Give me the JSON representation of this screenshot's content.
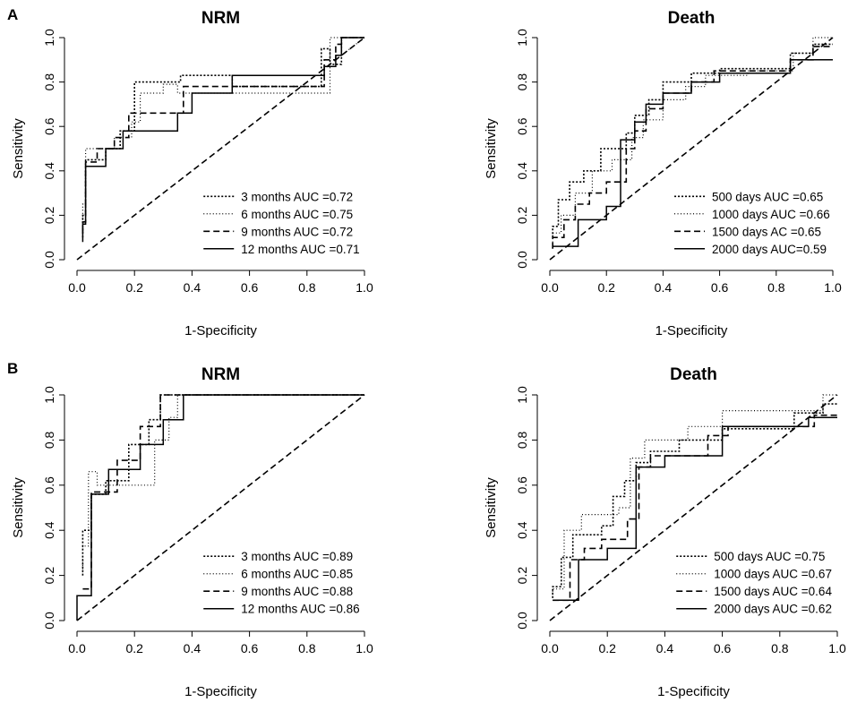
{
  "figure": {
    "panels": [
      {
        "letter": "A"
      },
      {
        "letter": "B"
      }
    ]
  },
  "chart_data": [
    {
      "panel": "A",
      "type": "line",
      "title": "NRM",
      "xlabel": "1-Specificity",
      "ylabel": "Sensitivity",
      "xlim": [
        0,
        1
      ],
      "ylim": [
        0,
        1
      ],
      "xticks": [
        "0.0",
        "0.2",
        "0.4",
        "0.6",
        "0.8",
        "1.0"
      ],
      "yticks": [
        "0.0",
        "0.2",
        "0.4",
        "0.6",
        "0.8",
        "1.0"
      ],
      "legend_position": "bottom-right",
      "reference_line": "diagonal",
      "series": [
        {
          "name": "3 months AUC =0.72",
          "style": "dotted-dense",
          "x": [
            0.02,
            0.02,
            0.03,
            0.03,
            0.1,
            0.1,
            0.15,
            0.15,
            0.2,
            0.2,
            0.36,
            0.36,
            0.54,
            0.54,
            0.85,
            0.85,
            0.88,
            0.88,
            0.92,
            0.92,
            1.0
          ],
          "y": [
            0.1,
            0.2,
            0.2,
            0.45,
            0.45,
            0.5,
            0.5,
            0.58,
            0.58,
            0.8,
            0.8,
            0.83,
            0.83,
            0.78,
            0.78,
            0.95,
            0.95,
            0.88,
            0.88,
            1.0,
            1.0
          ]
        },
        {
          "name": "6 months AUC =0.75",
          "style": "dotted-sparse",
          "x": [
            0.02,
            0.02,
            0.03,
            0.03,
            0.13,
            0.13,
            0.19,
            0.19,
            0.22,
            0.22,
            0.3,
            0.3,
            0.35,
            0.35,
            0.88,
            0.88,
            0.92,
            0.92,
            1.0
          ],
          "y": [
            0.15,
            0.25,
            0.25,
            0.5,
            0.5,
            0.55,
            0.55,
            0.62,
            0.62,
            0.75,
            0.75,
            0.79,
            0.79,
            0.75,
            0.75,
            1.0,
            1.0,
            0.92,
            1.0
          ]
        },
        {
          "name": "9 months AUC =0.72",
          "style": "dashed",
          "x": [
            0.02,
            0.02,
            0.03,
            0.03,
            0.07,
            0.07,
            0.13,
            0.13,
            0.18,
            0.18,
            0.25,
            0.25,
            0.37,
            0.37,
            0.86,
            0.86,
            0.9,
            0.9,
            0.92,
            0.92,
            1.0
          ],
          "y": [
            0.12,
            0.17,
            0.17,
            0.44,
            0.44,
            0.5,
            0.5,
            0.55,
            0.55,
            0.66,
            0.66,
            0.66,
            0.66,
            0.78,
            0.78,
            0.9,
            0.9,
            0.97,
            0.97,
            1.0,
            1.0
          ]
        },
        {
          "name": "12 months AUC =0.71",
          "style": "solid",
          "x": [
            0.02,
            0.02,
            0.03,
            0.03,
            0.1,
            0.1,
            0.16,
            0.16,
            0.2,
            0.2,
            0.35,
            0.35,
            0.4,
            0.4,
            0.54,
            0.54,
            0.86,
            0.86,
            0.9,
            0.9,
            0.92,
            0.92,
            1.0
          ],
          "y": [
            0.08,
            0.16,
            0.16,
            0.42,
            0.42,
            0.5,
            0.5,
            0.58,
            0.58,
            0.58,
            0.58,
            0.66,
            0.66,
            0.75,
            0.75,
            0.83,
            0.83,
            0.87,
            0.87,
            0.92,
            0.92,
            1.0,
            1.0
          ]
        }
      ]
    },
    {
      "panel": "A",
      "type": "line",
      "title": "Death",
      "xlabel": "1-Specificity",
      "ylabel": "Sensitivity",
      "xlim": [
        0,
        1
      ],
      "ylim": [
        0,
        1
      ],
      "xticks": [
        "0.0",
        "0.2",
        "0.4",
        "0.6",
        "0.8",
        "1.0"
      ],
      "yticks": [
        "0.0",
        "0.2",
        "0.4",
        "0.6",
        "0.8",
        "1.0"
      ],
      "legend_position": "bottom-right",
      "reference_line": "diagonal",
      "series": [
        {
          "name": "500 days AUC =0.65",
          "style": "dotted-dense",
          "x": [
            0.01,
            0.01,
            0.03,
            0.03,
            0.07,
            0.07,
            0.12,
            0.12,
            0.18,
            0.18,
            0.27,
            0.27,
            0.3,
            0.3,
            0.35,
            0.35,
            0.4,
            0.4,
            0.5,
            0.5,
            0.6,
            0.6,
            0.85,
            0.85,
            0.93,
            0.93,
            1.0
          ],
          "y": [
            0.1,
            0.15,
            0.15,
            0.27,
            0.27,
            0.35,
            0.35,
            0.4,
            0.4,
            0.5,
            0.5,
            0.57,
            0.57,
            0.65,
            0.65,
            0.72,
            0.72,
            0.8,
            0.8,
            0.84,
            0.84,
            0.86,
            0.86,
            0.93,
            0.93,
            0.97,
            0.97
          ]
        },
        {
          "name": "1000 days AUC =0.66",
          "style": "dotted-sparse",
          "x": [
            0.01,
            0.01,
            0.04,
            0.04,
            0.09,
            0.09,
            0.15,
            0.15,
            0.22,
            0.22,
            0.29,
            0.29,
            0.33,
            0.33,
            0.4,
            0.4,
            0.48,
            0.48,
            0.55,
            0.55,
            0.7,
            0.7,
            0.86,
            0.86,
            0.93,
            0.93,
            1.0
          ],
          "y": [
            0.05,
            0.12,
            0.12,
            0.2,
            0.2,
            0.3,
            0.3,
            0.4,
            0.4,
            0.45,
            0.45,
            0.55,
            0.55,
            0.63,
            0.63,
            0.72,
            0.72,
            0.78,
            0.78,
            0.83,
            0.83,
            0.85,
            0.85,
            0.93,
            0.93,
            1.0,
            1.0
          ]
        },
        {
          "name": "1500 days AC =0.65",
          "style": "dashed",
          "x": [
            0.01,
            0.01,
            0.05,
            0.05,
            0.09,
            0.09,
            0.14,
            0.14,
            0.2,
            0.2,
            0.27,
            0.27,
            0.3,
            0.3,
            0.34,
            0.34,
            0.4,
            0.4,
            0.5,
            0.5,
            0.58,
            0.58,
            0.85,
            0.85,
            0.93,
            0.93,
            1.0
          ],
          "y": [
            0.05,
            0.1,
            0.1,
            0.18,
            0.18,
            0.25,
            0.25,
            0.3,
            0.3,
            0.35,
            0.35,
            0.5,
            0.5,
            0.58,
            0.58,
            0.68,
            0.68,
            0.75,
            0.75,
            0.8,
            0.8,
            0.85,
            0.85,
            0.9,
            0.9,
            0.96,
            0.96
          ]
        },
        {
          "name": "2000 days AUC=0.59",
          "style": "solid",
          "x": [
            0.01,
            0.01,
            0.1,
            0.1,
            0.2,
            0.2,
            0.25,
            0.25,
            0.3,
            0.3,
            0.34,
            0.34,
            0.4,
            0.4,
            0.5,
            0.5,
            0.6,
            0.6,
            0.85,
            0.85,
            0.9,
            0.9,
            1.0
          ],
          "y": [
            0.05,
            0.06,
            0.06,
            0.18,
            0.18,
            0.24,
            0.24,
            0.54,
            0.54,
            0.62,
            0.62,
            0.7,
            0.7,
            0.75,
            0.75,
            0.8,
            0.8,
            0.84,
            0.84,
            0.9,
            0.9,
            0.9,
            0.9
          ]
        }
      ]
    },
    {
      "panel": "B",
      "type": "line",
      "title": "NRM",
      "xlabel": "1-Specificity",
      "ylabel": "Sensitivity",
      "xlim": [
        0,
        1
      ],
      "ylim": [
        0,
        1
      ],
      "xticks": [
        "0.0",
        "0.2",
        "0.4",
        "0.6",
        "0.8",
        "1.0"
      ],
      "yticks": [
        "0.0",
        "0.2",
        "0.4",
        "0.6",
        "0.8",
        "1.0"
      ],
      "legend_position": "bottom-right",
      "reference_line": "diagonal",
      "series": [
        {
          "name": "3 months AUC =0.89",
          "style": "dotted-dense",
          "x": [
            0.02,
            0.02,
            0.05,
            0.05,
            0.1,
            0.1,
            0.18,
            0.18,
            0.25,
            0.25,
            0.29,
            0.29,
            0.31,
            0.31,
            1.0
          ],
          "y": [
            0.2,
            0.4,
            0.4,
            0.56,
            0.56,
            0.62,
            0.62,
            0.78,
            0.78,
            0.89,
            0.89,
            1.0,
            1.0,
            1.0,
            1.0
          ]
        },
        {
          "name": "6 months AUC =0.85",
          "style": "dotted-sparse",
          "x": [
            0.02,
            0.02,
            0.04,
            0.04,
            0.07,
            0.07,
            0.12,
            0.12,
            0.27,
            0.27,
            0.32,
            0.32,
            0.35,
            0.35,
            1.0
          ],
          "y": [
            0.2,
            0.33,
            0.33,
            0.66,
            0.66,
            0.6,
            0.6,
            0.6,
            0.6,
            0.8,
            0.8,
            0.9,
            0.9,
            1.0,
            1.0
          ]
        },
        {
          "name": "9 months AUC =0.88",
          "style": "dashed",
          "x": [
            0.02,
            0.02,
            0.05,
            0.05,
            0.08,
            0.08,
            0.14,
            0.14,
            0.22,
            0.22,
            0.29,
            0.29,
            0.3,
            0.3,
            1.0
          ],
          "y": [
            0.14,
            0.14,
            0.14,
            0.57,
            0.57,
            0.57,
            0.57,
            0.71,
            0.71,
            0.86,
            0.86,
            1.0,
            1.0,
            1.0,
            1.0
          ]
        },
        {
          "name": "12 months AUC =0.86",
          "style": "solid",
          "x": [
            0.0,
            0.0,
            0.05,
            0.05,
            0.11,
            0.11,
            0.22,
            0.22,
            0.27,
            0.27,
            0.3,
            0.3,
            0.33,
            0.33,
            0.37,
            0.37,
            1.0
          ],
          "y": [
            0.0,
            0.11,
            0.11,
            0.56,
            0.56,
            0.67,
            0.67,
            0.78,
            0.78,
            0.78,
            0.78,
            0.89,
            0.89,
            0.89,
            0.89,
            1.0,
            1.0
          ]
        }
      ]
    },
    {
      "panel": "B",
      "type": "line",
      "title": "Death",
      "xlabel": "1-Specificity",
      "ylabel": "Sensitivity",
      "xlim": [
        0,
        1
      ],
      "ylim": [
        0,
        1
      ],
      "xticks": [
        "0.0",
        "0.2",
        "0.4",
        "0.6",
        "0.8",
        "1.0"
      ],
      "yticks": [
        "0.0",
        "0.2",
        "0.4",
        "0.6",
        "0.8",
        "1.0"
      ],
      "legend_position": "bottom-right",
      "reference_line": "diagonal",
      "series": [
        {
          "name": "500 days AUC =0.75",
          "style": "dotted-dense",
          "x": [
            0.01,
            0.01,
            0.04,
            0.04,
            0.08,
            0.08,
            0.18,
            0.18,
            0.22,
            0.22,
            0.26,
            0.26,
            0.3,
            0.3,
            0.35,
            0.35,
            0.45,
            0.45,
            0.6,
            0.6,
            0.85,
            0.85,
            0.95,
            0.95,
            1.0
          ],
          "y": [
            0.1,
            0.15,
            0.15,
            0.28,
            0.28,
            0.38,
            0.38,
            0.42,
            0.42,
            0.55,
            0.55,
            0.62,
            0.62,
            0.7,
            0.7,
            0.75,
            0.75,
            0.8,
            0.8,
            0.85,
            0.85,
            0.92,
            0.92,
            0.96,
            0.96
          ]
        },
        {
          "name": "1000 days AUC =0.67",
          "style": "dotted-sparse",
          "x": [
            0.01,
            0.01,
            0.05,
            0.05,
            0.11,
            0.11,
            0.2,
            0.2,
            0.24,
            0.24,
            0.28,
            0.28,
            0.33,
            0.33,
            0.4,
            0.4,
            0.48,
            0.48,
            0.6,
            0.6,
            0.85,
            0.85,
            0.95,
            0.95,
            1.0
          ],
          "y": [
            0.1,
            0.14,
            0.14,
            0.4,
            0.4,
            0.47,
            0.47,
            0.47,
            0.47,
            0.5,
            0.5,
            0.72,
            0.72,
            0.8,
            0.8,
            0.8,
            0.8,
            0.86,
            0.86,
            0.93,
            0.93,
            0.93,
            0.93,
            1.0,
            1.0
          ]
        },
        {
          "name": "1500 days AUC =0.64",
          "style": "dashed",
          "x": [
            0.01,
            0.01,
            0.07,
            0.07,
            0.12,
            0.12,
            0.18,
            0.18,
            0.27,
            0.27,
            0.31,
            0.31,
            0.35,
            0.35,
            0.55,
            0.55,
            0.62,
            0.62,
            0.85,
            0.85,
            0.92,
            0.92,
            1.0
          ],
          "y": [
            0.09,
            0.09,
            0.09,
            0.27,
            0.27,
            0.32,
            0.32,
            0.36,
            0.36,
            0.45,
            0.45,
            0.68,
            0.68,
            0.73,
            0.73,
            0.82,
            0.82,
            0.86,
            0.86,
            0.86,
            0.86,
            0.91,
            0.91
          ]
        },
        {
          "name": "2000 days AUC =0.62",
          "style": "solid",
          "x": [
            0.01,
            0.01,
            0.1,
            0.1,
            0.2,
            0.2,
            0.3,
            0.3,
            0.4,
            0.4,
            0.6,
            0.6,
            0.9,
            0.9,
            1.0
          ],
          "y": [
            0.09,
            0.09,
            0.09,
            0.27,
            0.27,
            0.32,
            0.32,
            0.68,
            0.68,
            0.73,
            0.73,
            0.86,
            0.86,
            0.9,
            0.9
          ]
        }
      ]
    }
  ]
}
